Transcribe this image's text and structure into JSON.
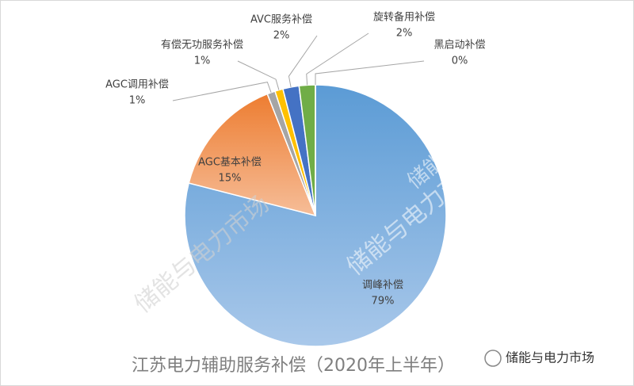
{
  "chart_data": {
    "type": "pie",
    "title": "江苏电力辅助服务补偿（2020年上半年）",
    "categories": [
      "调峰补偿",
      "AGC基本补偿",
      "AGC调用补偿",
      "有偿无功服务补偿",
      "AVC服务补偿",
      "旋转备用补偿",
      "黑启动补偿"
    ],
    "values": [
      79,
      15,
      1,
      1,
      2,
      2,
      0
    ],
    "value_labels": [
      "79%",
      "15%",
      "1%",
      "1%",
      "2%",
      "2%",
      "0%"
    ],
    "colors": [
      "#5b9bd5",
      "#ed7d31",
      "#a5a5a5",
      "#ffc000",
      "#4472c4",
      "#70ad47",
      "#264478"
    ],
    "watermark": "储能与电力市场",
    "brand": "储能与电力市场"
  }
}
